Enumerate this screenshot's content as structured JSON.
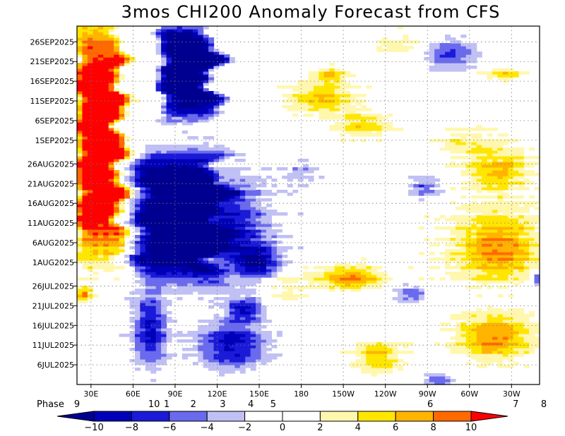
{
  "chart_data": {
    "type": "heatmap",
    "title": "3mos CHI200 Anomaly Forecast from CFS",
    "x_axis": {
      "min_deg_east": 20,
      "max_deg_east": 350,
      "ticks": [
        {
          "label": "30E",
          "lon": 30
        },
        {
          "label": "60E",
          "lon": 60
        },
        {
          "label": "90E",
          "lon": 90
        },
        {
          "label": "120E",
          "lon": 120
        },
        {
          "label": "150E",
          "lon": 150
        },
        {
          "label": "180",
          "lon": 180
        },
        {
          "label": "150W",
          "lon": 210
        },
        {
          "label": "120W",
          "lon": 240
        },
        {
          "label": "90W",
          "lon": 270
        },
        {
          "label": "60W",
          "lon": 300
        },
        {
          "label": "30W",
          "lon": 330
        }
      ]
    },
    "y_axis": {
      "start_date": "2025-07-01",
      "end_date": "2025-09-30",
      "ticks": [
        {
          "label": "6JUL2025",
          "date": "2025-07-06"
        },
        {
          "label": "11JUL2025",
          "date": "2025-07-11"
        },
        {
          "label": "16JUL2025",
          "date": "2025-07-16"
        },
        {
          "label": "21JUL2025",
          "date": "2025-07-21"
        },
        {
          "label": "26JUL2025",
          "date": "2025-07-26"
        },
        {
          "label": "1AUG2025",
          "date": "2025-08-01"
        },
        {
          "label": "6AUG2025",
          "date": "2025-08-06"
        },
        {
          "label": "11AUG2025",
          "date": "2025-08-11"
        },
        {
          "label": "16AUG2025",
          "date": "2025-08-16"
        },
        {
          "label": "21AUG2025",
          "date": "2025-08-21"
        },
        {
          "label": "26AUG2025",
          "date": "2025-08-26"
        },
        {
          "label": "1SEP2025",
          "date": "2025-09-01"
        },
        {
          "label": "6SEP2025",
          "date": "2025-09-06"
        },
        {
          "label": "11SEP2025",
          "date": "2025-09-11"
        },
        {
          "label": "16SEP2025",
          "date": "2025-09-16"
        },
        {
          "label": "21SEP2025",
          "date": "2025-09-21"
        },
        {
          "label": "26SEP2025",
          "date": "2025-09-26"
        }
      ]
    },
    "grid": true,
    "phase_labels": {
      "title": "Phase",
      "items": [
        {
          "label": "9",
          "lon": 20
        },
        {
          "label": "10",
          "lon": 75
        },
        {
          "label": "1",
          "lon": 84
        },
        {
          "label": "2",
          "lon": 103
        },
        {
          "label": "3",
          "lon": 124
        },
        {
          "label": "4",
          "lon": 144
        },
        {
          "label": "5",
          "lon": 160
        },
        {
          "label": "6",
          "lon": 272
        },
        {
          "label": "7",
          "lon": 333
        },
        {
          "label": "8",
          "lon": 360
        }
      ]
    },
    "colorbar": {
      "levels": [
        -10,
        -8,
        -6,
        -4,
        -2,
        0,
        2,
        4,
        6,
        8,
        10
      ],
      "labels": [
        "−10",
        "−8",
        "−6",
        "−4",
        "−2",
        "0",
        "2",
        "4",
        "6",
        "8",
        "10"
      ],
      "colors": [
        "#0000b8",
        "#1a1ad8",
        "#6a6aee",
        "#c0c0f4",
        "#ffffff",
        "#ffffff",
        "#fff7ae",
        "#ffe600",
        "#ffb400",
        "#ff6a00",
        "#ff1a1a"
      ],
      "below_color": "#000090",
      "above_color": "#ff0000"
    },
    "features": [
      {
        "kind": "strip",
        "value": 10,
        "lon_start": 20,
        "lon_end": 52,
        "date_start": "2025-08-03",
        "date_end": "2025-09-30",
        "wiggle": 5
      },
      {
        "kind": "strip",
        "value": -10,
        "lon_start": 62,
        "lon_end": 122,
        "date_start": "2025-07-28",
        "date_end": "2025-08-29",
        "wiggle": 8
      },
      {
        "kind": "strip",
        "value": -10,
        "lon_start": 80,
        "lon_end": 118,
        "date_start": "2025-09-07",
        "date_end": "2025-09-30",
        "wiggle": 7
      },
      {
        "kind": "blob",
        "value": -9,
        "lon": 128,
        "date": "2025-08-10",
        "rlon": 28,
        "rdays": 12
      },
      {
        "kind": "blob",
        "value": -9,
        "lon": 150,
        "date": "2025-08-01",
        "rlon": 16,
        "rdays": 4
      },
      {
        "kind": "blob",
        "value": -9,
        "lon": 72,
        "date": "2025-07-15",
        "rlon": 12,
        "rdays": 9
      },
      {
        "kind": "blob",
        "value": -9,
        "lon": 130,
        "date": "2025-07-11",
        "rlon": 24,
        "rdays": 6
      },
      {
        "kind": "blob",
        "value": -8,
        "lon": 140,
        "date": "2025-07-20",
        "rlon": 12,
        "rdays": 3
      },
      {
        "kind": "blob",
        "value": 8,
        "lon": 320,
        "date": "2025-08-05",
        "rlon": 32,
        "rdays": 9
      },
      {
        "kind": "blob",
        "value": 8,
        "lon": 318,
        "date": "2025-07-13",
        "rlon": 28,
        "rdays": 6
      },
      {
        "kind": "blob",
        "value": 7,
        "lon": 320,
        "date": "2025-08-24",
        "rlon": 22,
        "rdays": 5
      },
      {
        "kind": "blob",
        "value": 8,
        "lon": 215,
        "date": "2025-07-28",
        "rlon": 22,
        "rdays": 3
      },
      {
        "kind": "blob",
        "value": 6,
        "lon": 235,
        "date": "2025-07-08",
        "rlon": 18,
        "rdays": 4
      },
      {
        "kind": "blob",
        "value": 6,
        "lon": 195,
        "date": "2025-09-12",
        "rlon": 22,
        "rdays": 4
      },
      {
        "kind": "blob",
        "value": 6,
        "lon": 225,
        "date": "2025-09-05",
        "rlon": 18,
        "rdays": 3
      },
      {
        "kind": "blob",
        "value": 5,
        "lon": 200,
        "date": "2025-09-18",
        "rlon": 10,
        "rdays": 2
      },
      {
        "kind": "blob",
        "value": 5,
        "lon": 325,
        "date": "2025-09-18",
        "rlon": 12,
        "rdays": 2
      },
      {
        "kind": "blob",
        "value": -6,
        "lon": 285,
        "date": "2025-09-23",
        "rlon": 18,
        "rdays": 4
      },
      {
        "kind": "blob",
        "value": -5,
        "lon": 268,
        "date": "2025-08-20",
        "rlon": 10,
        "rdays": 3
      },
      {
        "kind": "blob",
        "value": -5,
        "lon": 258,
        "date": "2025-07-24",
        "rlon": 10,
        "rdays": 2
      },
      {
        "kind": "blob",
        "value": -6,
        "lon": 278,
        "date": "2025-07-02",
        "rlon": 10,
        "rdays": 2
      },
      {
        "kind": "blob",
        "value": -7,
        "lon": 348,
        "date": "2025-07-28",
        "rlon": 5,
        "rdays": 2
      },
      {
        "kind": "blob",
        "value": 3,
        "lon": 170,
        "date": "2025-07-25",
        "rlon": 20,
        "rdays": 5
      },
      {
        "kind": "blob",
        "value": 3,
        "lon": 250,
        "date": "2025-09-25",
        "rlon": 25,
        "rdays": 4
      },
      {
        "kind": "blob",
        "value": 3,
        "lon": 300,
        "date": "2025-09-01",
        "rlon": 25,
        "rdays": 4
      },
      {
        "kind": "blob",
        "value": -3,
        "lon": 180,
        "date": "2025-08-24",
        "rlon": 12,
        "rdays": 3
      },
      {
        "kind": "blob",
        "value": 9,
        "lon": 25,
        "date": "2025-07-24",
        "rlon": 6,
        "rdays": 2
      }
    ]
  }
}
